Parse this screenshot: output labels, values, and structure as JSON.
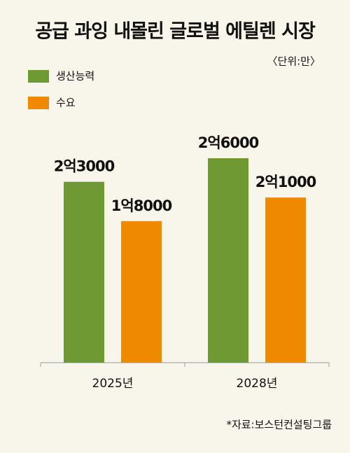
{
  "chart_data": {
    "type": "bar",
    "title": "공급 과잉 내몰린 글로벌 에틸렌 시장",
    "unit": "〈단위:만〉",
    "source": "*자료:보스턴컨설팅그룹",
    "categories": [
      "2025년",
      "2028년"
    ],
    "series": [
      {
        "name": "생산능력",
        "color": "#6f9a33",
        "values": [
          23000,
          26000
        ],
        "value_labels": [
          "2억3000",
          "2억6000"
        ]
      },
      {
        "name": "수요",
        "color": "#ef8a00",
        "values": [
          18000,
          21000
        ],
        "value_labels": [
          "1억8000",
          "2억1000"
        ]
      }
    ]
  }
}
